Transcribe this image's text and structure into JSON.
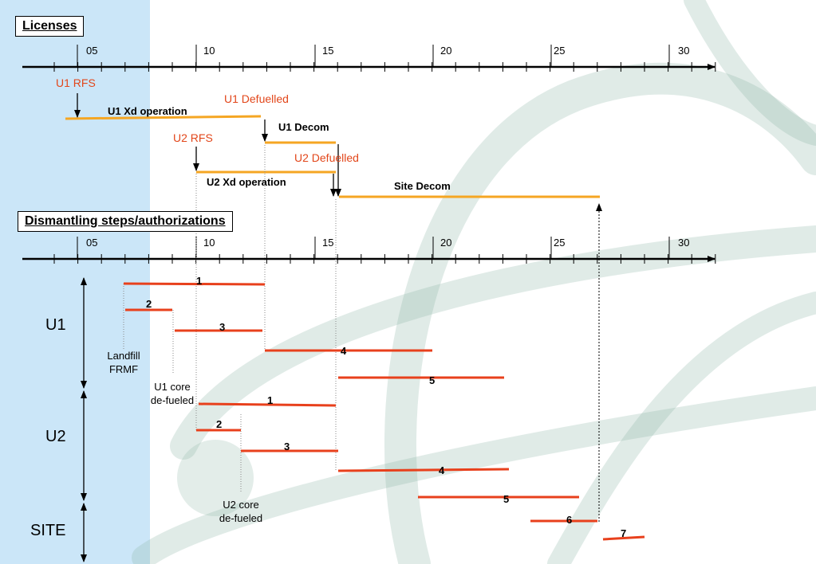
{
  "licenses_section": {
    "title": "Licenses",
    "ticks": [
      "05",
      "10",
      "15",
      "20",
      "25",
      "30"
    ],
    "milestones": {
      "u1_rfs": "U1 RFS",
      "u1_defuelled": "U1 Defuelled",
      "u2_rfs": "U2 RFS",
      "u2_defuelled": "U2 Defuelled"
    },
    "phases": {
      "u1_xd_operation": "U1 Xd operation",
      "u1_decom": "U1 Decom",
      "u2_xd_operation": "U2 Xd operation",
      "site_decom": "Site Decom"
    }
  },
  "dismantling_section": {
    "title": "Dismantling steps/authorizations",
    "ticks": [
      "05",
      "10",
      "15",
      "20",
      "25",
      "30"
    ],
    "groups": {
      "u1": "U1",
      "u2": "U2",
      "site": "SITE"
    },
    "notes": {
      "landfill_frmf": "Landfill\nFRMF",
      "u1_core_defueled": "U1 core\nde-fueled",
      "u2_core_defueled": "U2 core\nde-fueled"
    },
    "steps": [
      {
        "label": "1",
        "group": "u1"
      },
      {
        "label": "2",
        "group": "u1"
      },
      {
        "label": "3",
        "group": "u1"
      },
      {
        "label": "4",
        "group": "u1"
      },
      {
        "label": "5",
        "group": "u1"
      },
      {
        "label": "1",
        "group": "u2"
      },
      {
        "label": "2",
        "group": "u2"
      },
      {
        "label": "3",
        "group": "u2"
      },
      {
        "label": "4",
        "group": "u2"
      },
      {
        "label": "5",
        "group": "u2"
      },
      {
        "label": "6",
        "group": "site"
      },
      {
        "label": "7",
        "group": "site"
      }
    ]
  },
  "colors": {
    "sidebar": "#cbe6f8",
    "phase_bar": "#f5a623",
    "step_bar": "#e8401c",
    "milestone_text": "#e2461a",
    "swirl": "#8fb8a8"
  }
}
